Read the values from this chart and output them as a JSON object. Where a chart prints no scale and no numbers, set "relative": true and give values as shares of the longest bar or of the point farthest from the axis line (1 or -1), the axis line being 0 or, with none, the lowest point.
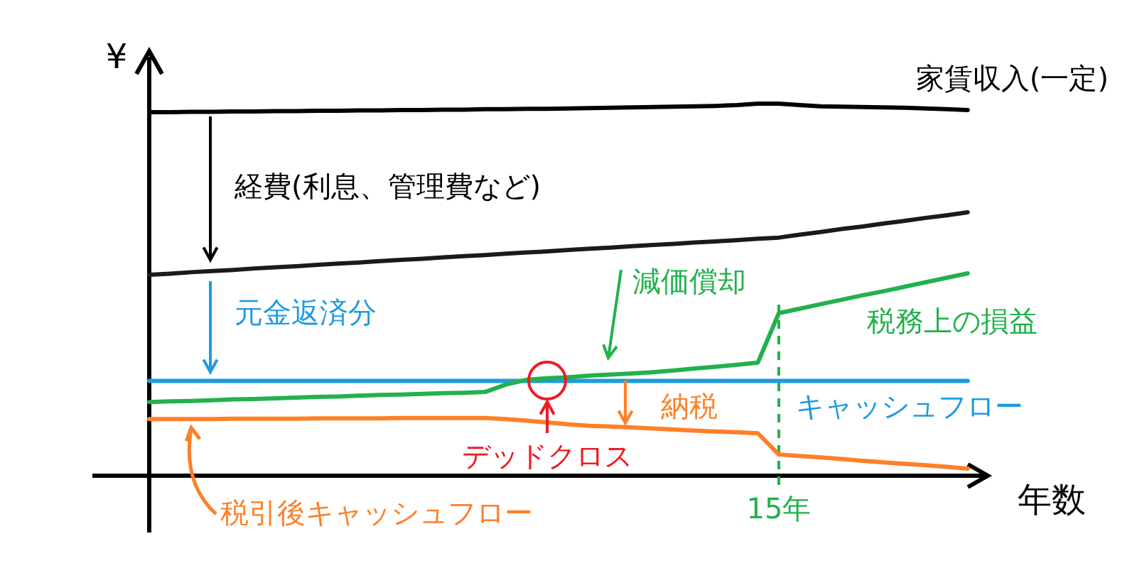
{
  "chart_data": {
    "type": "line",
    "relative": true,
    "ylabel": "¥",
    "xlabel": "年数",
    "marker": "none",
    "line_style": "solid",
    "legend": false,
    "categories": [
      null,
      null,
      null,
      null,
      null,
      null,
      null,
      null,
      null,
      null,
      null,
      null,
      null,
      null,
      null,
      null,
      null,
      null,
      null,
      null,
      null,
      null,
      null,
      null,
      null,
      null,
      null,
      null,
      null,
      null,
      null,
      null,
      null,
      null,
      null,
      null,
      null,
      null,
      null,
      null
    ],
    "series": [
      {
        "name": "家賃収入(一定)",
        "color": "#000000",
        "values": [
          0.977,
          0.977,
          0.978,
          0.978,
          0.979,
          0.979,
          0.98,
          0.98,
          0.981,
          0.981,
          0.982,
          0.982,
          0.983,
          0.983,
          0.984,
          0.984,
          0.985,
          0.985,
          0.986,
          0.986,
          0.987,
          0.988,
          0.989,
          0.99,
          0.991,
          0.992,
          0.993,
          0.994,
          0.996,
          1,
          1,
          0.996,
          0.993,
          0.992,
          0.991,
          0.99,
          0.989,
          0.987,
          0.985,
          0.983
        ]
      },
      {
        "color": "#1a1a1a",
        "values": [
          0.54,
          0.543,
          0.547,
          0.55,
          0.553,
          0.557,
          0.56,
          0.563,
          0.567,
          0.57,
          0.573,
          0.577,
          0.58,
          0.583,
          0.587,
          0.59,
          0.593,
          0.597,
          0.6,
          0.603,
          0.607,
          0.61,
          0.613,
          0.617,
          0.62,
          0.623,
          0.627,
          0.63,
          0.633,
          0.637,
          0.64,
          0.648,
          0.655,
          0.663,
          0.67,
          0.678,
          0.685,
          0.693,
          0.7,
          0.708
        ]
      },
      {
        "name": "キャッシュフロー",
        "color": "#1e9be0",
        "values": [
          0.255,
          0.255,
          0.255,
          0.255,
          0.255,
          0.255,
          0.255,
          0.255,
          0.255,
          0.255,
          0.255,
          0.255,
          0.255,
          0.255,
          0.255,
          0.255,
          0.255,
          0.255,
          0.255,
          0.255,
          0.255,
          0.255,
          0.255,
          0.255,
          0.255,
          0.255,
          0.255,
          0.255,
          0.255,
          0.255,
          0.255,
          0.255,
          0.255,
          0.255,
          0.255,
          0.255,
          0.255,
          0.255,
          0.255,
          0.255
        ]
      },
      {
        "name": "税務上の損益",
        "color": "#22b14c",
        "values": [
          0.198,
          0.2,
          0.201,
          0.203,
          0.205,
          0.206,
          0.208,
          0.21,
          0.212,
          0.213,
          0.215,
          0.217,
          0.218,
          0.22,
          0.222,
          0.223,
          0.225,
          0.245,
          0.258,
          0.262,
          0.265,
          0.269,
          0.272,
          0.275,
          0.278,
          0.283,
          0.288,
          0.293,
          0.298,
          0.304,
          0.437,
          0.449,
          0.461,
          0.473,
          0.485,
          0.496,
          0.508,
          0.52,
          0.532,
          0.544
        ]
      },
      {
        "name": "税引後キャッシュフロー",
        "color": "#ff7f27",
        "values": [
          0.152,
          0.152,
          0.152,
          0.152,
          0.153,
          0.153,
          0.153,
          0.153,
          0.154,
          0.154,
          0.154,
          0.154,
          0.155,
          0.155,
          0.155,
          0.155,
          0.155,
          0.152,
          0.148,
          0.143,
          0.138,
          0.134,
          0.132,
          0.13,
          0.127,
          0.124,
          0.121,
          0.119,
          0.117,
          0.114,
          0.057,
          0.053,
          0.049,
          0.045,
          0.04,
          0.036,
          0.032,
          0.028,
          0.024,
          0.019
        ]
      }
    ],
    "ref_lines": [
      {
        "axis": "x",
        "label": "15年",
        "color": "#22b14c",
        "line_style": "dashed"
      }
    ],
    "annotations": [
      "経費(利息、管理費など)",
      "元金返済分",
      "減価償却",
      "納税",
      "デッドクロス"
    ]
  }
}
